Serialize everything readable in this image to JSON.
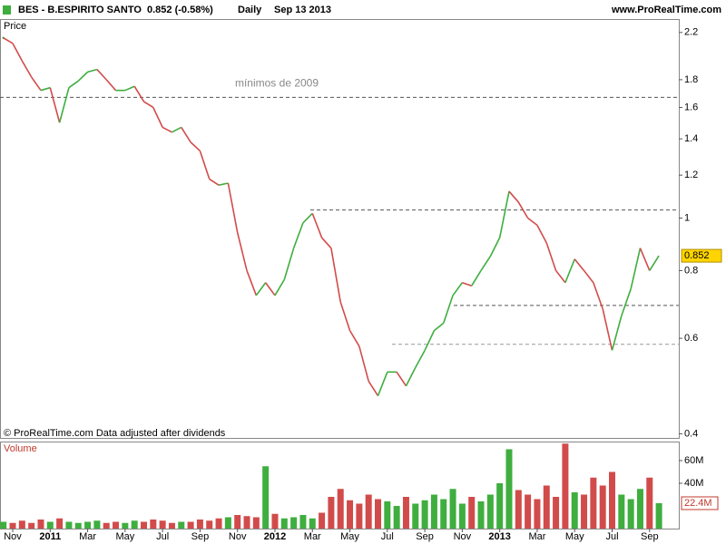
{
  "header": {
    "symbol": "BES - B.ESPIRITO SANTO",
    "quote": "0.852 (-0.58%)",
    "period": "Daily",
    "date": "Sep 13 2013",
    "site": "www.ProRealTime.com"
  },
  "chart_data": [
    {
      "type": "line",
      "title": "Price",
      "note": "© ProRealTime.com  Data adjusted after dividends",
      "categories": [
        null,
        "Nov",
        null,
        null,
        null,
        "2011",
        null,
        null,
        null,
        "Mar",
        null,
        null,
        null,
        "May",
        null,
        null,
        null,
        "Jul",
        null,
        null,
        null,
        "Sep",
        null,
        null,
        null,
        "Nov",
        null,
        null,
        null,
        "2012",
        null,
        null,
        null,
        "Mar",
        null,
        null,
        null,
        "May",
        null,
        null,
        null,
        "Jul",
        null,
        null,
        null,
        "Sep",
        null,
        null,
        null,
        "Nov",
        null,
        null,
        null,
        "2013",
        null,
        null,
        null,
        "Mar",
        null,
        null,
        null,
        "May",
        null,
        null,
        null,
        "Jul",
        null,
        null,
        null,
        "Sep",
        null
      ],
      "values": [
        2.15,
        2.1,
        1.95,
        1.82,
        1.72,
        1.74,
        1.5,
        1.74,
        1.79,
        1.86,
        1.88,
        1.8,
        1.72,
        1.72,
        1.75,
        1.64,
        1.6,
        1.47,
        1.44,
        1.47,
        1.38,
        1.33,
        1.18,
        1.15,
        1.16,
        0.94,
        0.8,
        0.72,
        0.76,
        0.72,
        0.77,
        0.88,
        0.98,
        1.02,
        0.92,
        0.88,
        0.7,
        0.62,
        0.58,
        0.5,
        0.47,
        0.52,
        0.52,
        0.49,
        0.53,
        0.57,
        0.62,
        0.64,
        0.72,
        0.76,
        0.75,
        0.8,
        0.85,
        0.92,
        1.12,
        1.07,
        1.0,
        0.97,
        0.9,
        0.8,
        0.76,
        0.84,
        0.8,
        0.76,
        0.68,
        0.57,
        0.66,
        0.74,
        0.88,
        0.8,
        0.852
      ],
      "up_color": "#3fae3f",
      "down_color": "#d24b4b",
      "last_value_color": "#ffd400",
      "log_scale": true,
      "ylim": [
        0.393,
        2.32
      ],
      "yticks": [
        2.2,
        1.8,
        1.6,
        1.4,
        1.2,
        1,
        0.8,
        0.6,
        0.4
      ],
      "reference_lines": [
        {
          "value": 1.67,
          "label": "mínimos de 2009"
        },
        {
          "value": 1.035
        },
        {
          "value": 0.69
        },
        {
          "value": 0.585
        }
      ]
    },
    {
      "type": "bar",
      "title": "Volume",
      "title_color": "#c0392b",
      "values": [
        6000000,
        5000000,
        7000000,
        5000000,
        8000000,
        6000000,
        9000000,
        6000000,
        5000000,
        6000000,
        7000000,
        5000000,
        6000000,
        5000000,
        7000000,
        6000000,
        8000000,
        7000000,
        5000000,
        6000000,
        6000000,
        8000000,
        7000000,
        9000000,
        10000000,
        12000000,
        11000000,
        10000000,
        55000000,
        13000000,
        9000000,
        10000000,
        12000000,
        9000000,
        14000000,
        28000000,
        35000000,
        25000000,
        22000000,
        30000000,
        26000000,
        24000000,
        20000000,
        28000000,
        22000000,
        25000000,
        30000000,
        26000000,
        35000000,
        22000000,
        28000000,
        24000000,
        30000000,
        40000000,
        70000000,
        34000000,
        30000000,
        26000000,
        38000000,
        28000000,
        75000000,
        32000000,
        30000000,
        45000000,
        38000000,
        50000000,
        30000000,
        26000000,
        35000000,
        45000000,
        22400000
      ],
      "last_value_label": "22.4M",
      "ylim": [
        0,
        76000000
      ],
      "yticks": [
        {
          "value": 40000000,
          "label": "40M"
        },
        {
          "value": 60000000,
          "label": "60M"
        }
      ]
    }
  ]
}
